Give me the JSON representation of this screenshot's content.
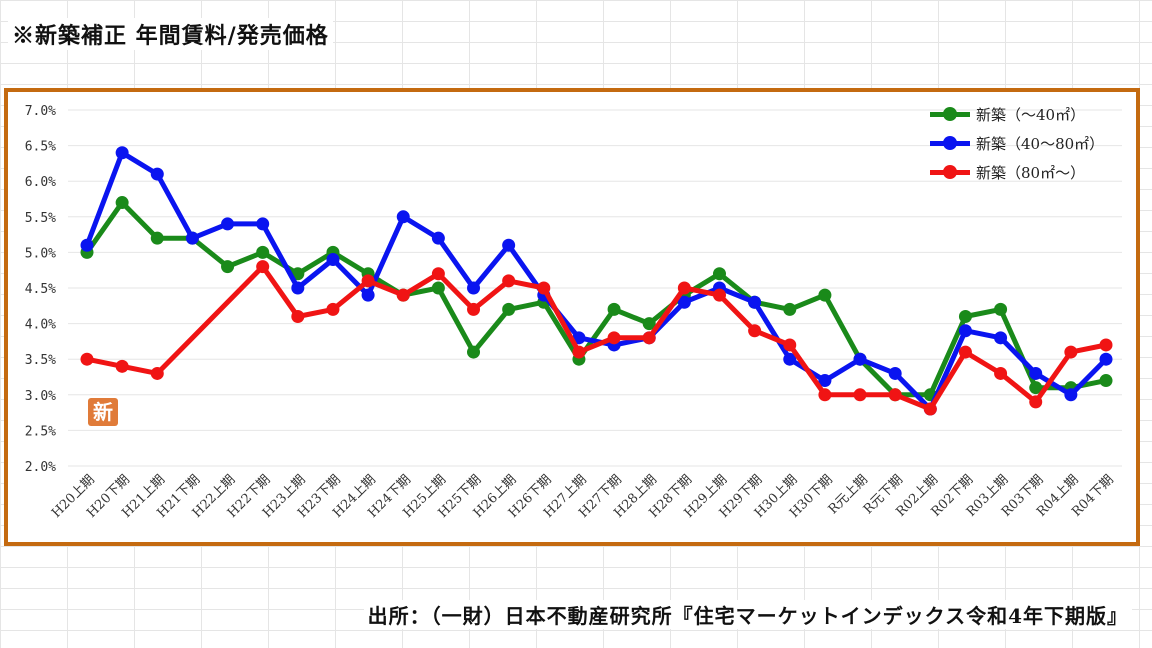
{
  "header": {
    "title": "※新築補正 年間賃料/発売価格"
  },
  "footer": {
    "source": "出所：（一財）日本不動産研究所『住宅マーケットインデックス令和4年下期版』"
  },
  "badge": {
    "text": "新"
  },
  "colors": {
    "frame": "#c46a10",
    "green": "#1a8a1a",
    "blue": "#0a14f0",
    "red": "#f01414"
  },
  "chart_data": {
    "type": "line",
    "categories": [
      "H20上期",
      "H20下期",
      "H21上期",
      "H21下期",
      "H22上期",
      "H22下期",
      "H23上期",
      "H23下期",
      "H24上期",
      "H24下期",
      "H25上期",
      "H25下期",
      "H26上期",
      "H26下期",
      "H27上期",
      "H27下期",
      "H28上期",
      "H28下期",
      "H29上期",
      "H29下期",
      "H30上期",
      "H30下期",
      "R元上期",
      "R元下期",
      "R02上期",
      "R02下期",
      "R03上期",
      "R03下期",
      "R04上期",
      "R04下期"
    ],
    "ylim": [
      2.0,
      7.0
    ],
    "yticks": [
      "2.0%",
      "2.5%",
      "3.0%",
      "3.5%",
      "4.0%",
      "4.5%",
      "5.0%",
      "5.5%",
      "6.0%",
      "6.5%",
      "7.0%"
    ],
    "grid": "horizontal",
    "legend_position": "top-right",
    "series": [
      {
        "name": "新築（～40㎡）",
        "color": "#1a8a1a",
        "values": [
          5.0,
          5.7,
          5.2,
          5.2,
          4.8,
          5.0,
          4.7,
          5.0,
          4.7,
          4.4,
          4.5,
          3.6,
          4.2,
          4.3,
          3.5,
          4.2,
          4.0,
          4.4,
          4.7,
          4.3,
          4.2,
          4.4,
          3.5,
          3.0,
          3.0,
          4.1,
          4.2,
          3.1,
          3.1,
          3.2
        ]
      },
      {
        "name": "新築（40～80㎡）",
        "color": "#0a14f0",
        "values": [
          5.1,
          6.4,
          6.1,
          5.2,
          5.4,
          5.4,
          4.5,
          4.9,
          4.4,
          5.5,
          5.2,
          4.5,
          5.1,
          4.4,
          3.8,
          3.7,
          3.8,
          4.3,
          4.5,
          4.3,
          3.5,
          3.2,
          3.5,
          3.3,
          2.8,
          3.9,
          3.8,
          3.3,
          3.0,
          3.5
        ]
      },
      {
        "name": "新築（80㎡～）",
        "color": "#f01414",
        "values": [
          3.5,
          3.4,
          3.3,
          null,
          null,
          4.8,
          4.1,
          4.2,
          4.6,
          4.4,
          4.7,
          4.2,
          4.6,
          4.5,
          3.6,
          3.8,
          3.8,
          4.5,
          4.4,
          3.9,
          3.7,
          3.0,
          3.0,
          3.0,
          2.8,
          3.6,
          3.3,
          2.9,
          3.6,
          3.7
        ]
      }
    ]
  }
}
